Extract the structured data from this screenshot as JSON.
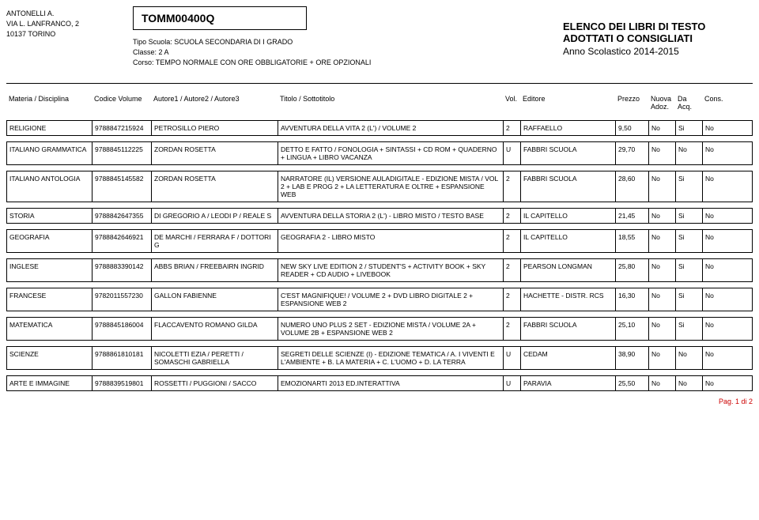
{
  "school": {
    "name": "ANTONELLI A.",
    "street": "VIA L. LANFRANCO, 2",
    "zip_city": "10137  TORINO"
  },
  "code": "TOMM00400Q",
  "meta": {
    "tipo_label": "Tipo Scuola:",
    "tipo_value": "SCUOLA SECONDARIA DI I GRADO",
    "classe_label": "Classe:",
    "classe_value": "2 A",
    "corso_label": "Corso:",
    "corso_value": "TEMPO NORMALE CON ORE OBBLIGATORIE + ORE OPZIONALI"
  },
  "right": {
    "title1": "ELENCO DEI LIBRI DI TESTO",
    "title2": "ADOTTATI O CONSIGLIATI",
    "year": "Anno Scolastico 2014-2015"
  },
  "headers": {
    "materia": "Materia / Disciplina",
    "codice": "Codice Volume",
    "autore": "Autore1 / Autore2 / Autore3",
    "titolo": "Titolo / Sottotitolo",
    "vol": "Vol.",
    "editore": "Editore",
    "prezzo": "Prezzo",
    "nuova": "Nuova Adoz.",
    "da": "Da Acq.",
    "cons": "Cons."
  },
  "rows": [
    {
      "mat": "RELIGIONE",
      "cod": "9788847215924",
      "aut": "PETROSILLO PIERO",
      "tit": "AVVENTURA DELLA VITA 2 (L') / VOLUME 2",
      "vol": "2",
      "ed": "RAFFAELLO",
      "pr": "9,50",
      "na": "No",
      "da": "Si",
      "co": "No"
    },
    {
      "mat": "ITALIANO GRAMMATICA",
      "cod": "9788845112225",
      "aut": "ZORDAN ROSETTA",
      "tit": "DETTO E FATTO / FONOLOGIA + SINTASSI + CD ROM + QUADERNO + LINGUA + LIBRO VACANZA",
      "vol": "U",
      "ed": "FABBRI SCUOLA",
      "pr": "29,70",
      "na": "No",
      "da": "No",
      "co": "No"
    },
    {
      "mat": "ITALIANO ANTOLOGIA",
      "cod": "9788845145582",
      "aut": "ZORDAN ROSETTA",
      "tit": "NARRATORE (IL) VERSIONE AULADIGITALE - EDIZIONE MISTA / VOL 2 + LAB E PROG 2 + LA LETTERATURA E OLTRE + ESPANSIONE WEB",
      "vol": "2",
      "ed": "FABBRI SCUOLA",
      "pr": "28,60",
      "na": "No",
      "da": "Si",
      "co": "No"
    },
    {
      "mat": "STORIA",
      "cod": "9788842647355",
      "aut": "DI GREGORIO A / LEODI P / REALE S",
      "tit": "AVVENTURA DELLA STORIA 2 (L') - LIBRO MISTO / TESTO BASE",
      "vol": "2",
      "ed": "IL CAPITELLO",
      "pr": "21,45",
      "na": "No",
      "da": "Si",
      "co": "No"
    },
    {
      "mat": "GEOGRAFIA",
      "cod": "9788842646921",
      "aut": "DE MARCHI / FERRARA F / DOTTORI G",
      "tit": "GEOGRAFIA 2 - LIBRO MISTO",
      "vol": "2",
      "ed": "IL CAPITELLO",
      "pr": "18,55",
      "na": "No",
      "da": "Si",
      "co": "No"
    },
    {
      "mat": "INGLESE",
      "cod": "9788883390142",
      "aut": "ABBS BRIAN / FREEBAIRN INGRID",
      "tit": "NEW SKY LIVE EDITION 2 / STUDENT'S + ACTIVITY BOOK + SKY READER + CD AUDIO + LIVEBOOK",
      "vol": "2",
      "ed": "PEARSON LONGMAN",
      "pr": "25,80",
      "na": "No",
      "da": "Si",
      "co": "No"
    },
    {
      "mat": "FRANCESE",
      "cod": "9782011557230",
      "aut": "GALLON FABIENNE",
      "tit": "C'EST MAGNIFIQUE! / VOLUME 2 + DVD LIBRO DIGITALE 2 + ESPANSIONE WEB 2",
      "vol": "2",
      "ed": "HACHETTE - DISTR. RCS",
      "pr": "16,30",
      "na": "No",
      "da": "Si",
      "co": "No"
    },
    {
      "mat": "MATEMATICA",
      "cod": "9788845186004",
      "aut": "FLACCAVENTO ROMANO GILDA",
      "tit": "NUMERO UNO PLUS 2 SET - EDIZIONE MISTA / VOLUME 2A + VOLUME 2B + ESPANSIONE WEB 2",
      "vol": "2",
      "ed": "FABBRI SCUOLA",
      "pr": "25,10",
      "na": "No",
      "da": "Si",
      "co": "No"
    },
    {
      "mat": "SCIENZE",
      "cod": "9788861810181",
      "aut": "NICOLETTI EZIA / PERETTI / SOMASCHI GABRIELLA",
      "tit": "SEGRETI DELLE SCIENZE (I) - EDIZIONE TEMATICA / A. I VIVENTI E L'AMBIENTE + B. LA MATERIA + C. L'UOMO + D. LA TERRA",
      "vol": "U",
      "ed": "CEDAM",
      "pr": "38,90",
      "na": "No",
      "da": "No",
      "co": "No"
    },
    {
      "mat": "ARTE E IMMAGINE",
      "cod": "9788839519801",
      "aut": "ROSSETTI / PUGGIONI / SACCO",
      "tit": "EMOZIONARTI 2013 ED.INTERATTIVA",
      "vol": "U",
      "ed": "PARAVIA",
      "pr": "25,50",
      "na": "No",
      "da": "No",
      "co": "No"
    }
  ],
  "footer": {
    "page": "Pag. 1 di 2"
  },
  "colors": {
    "footer_color": "#c00000"
  }
}
